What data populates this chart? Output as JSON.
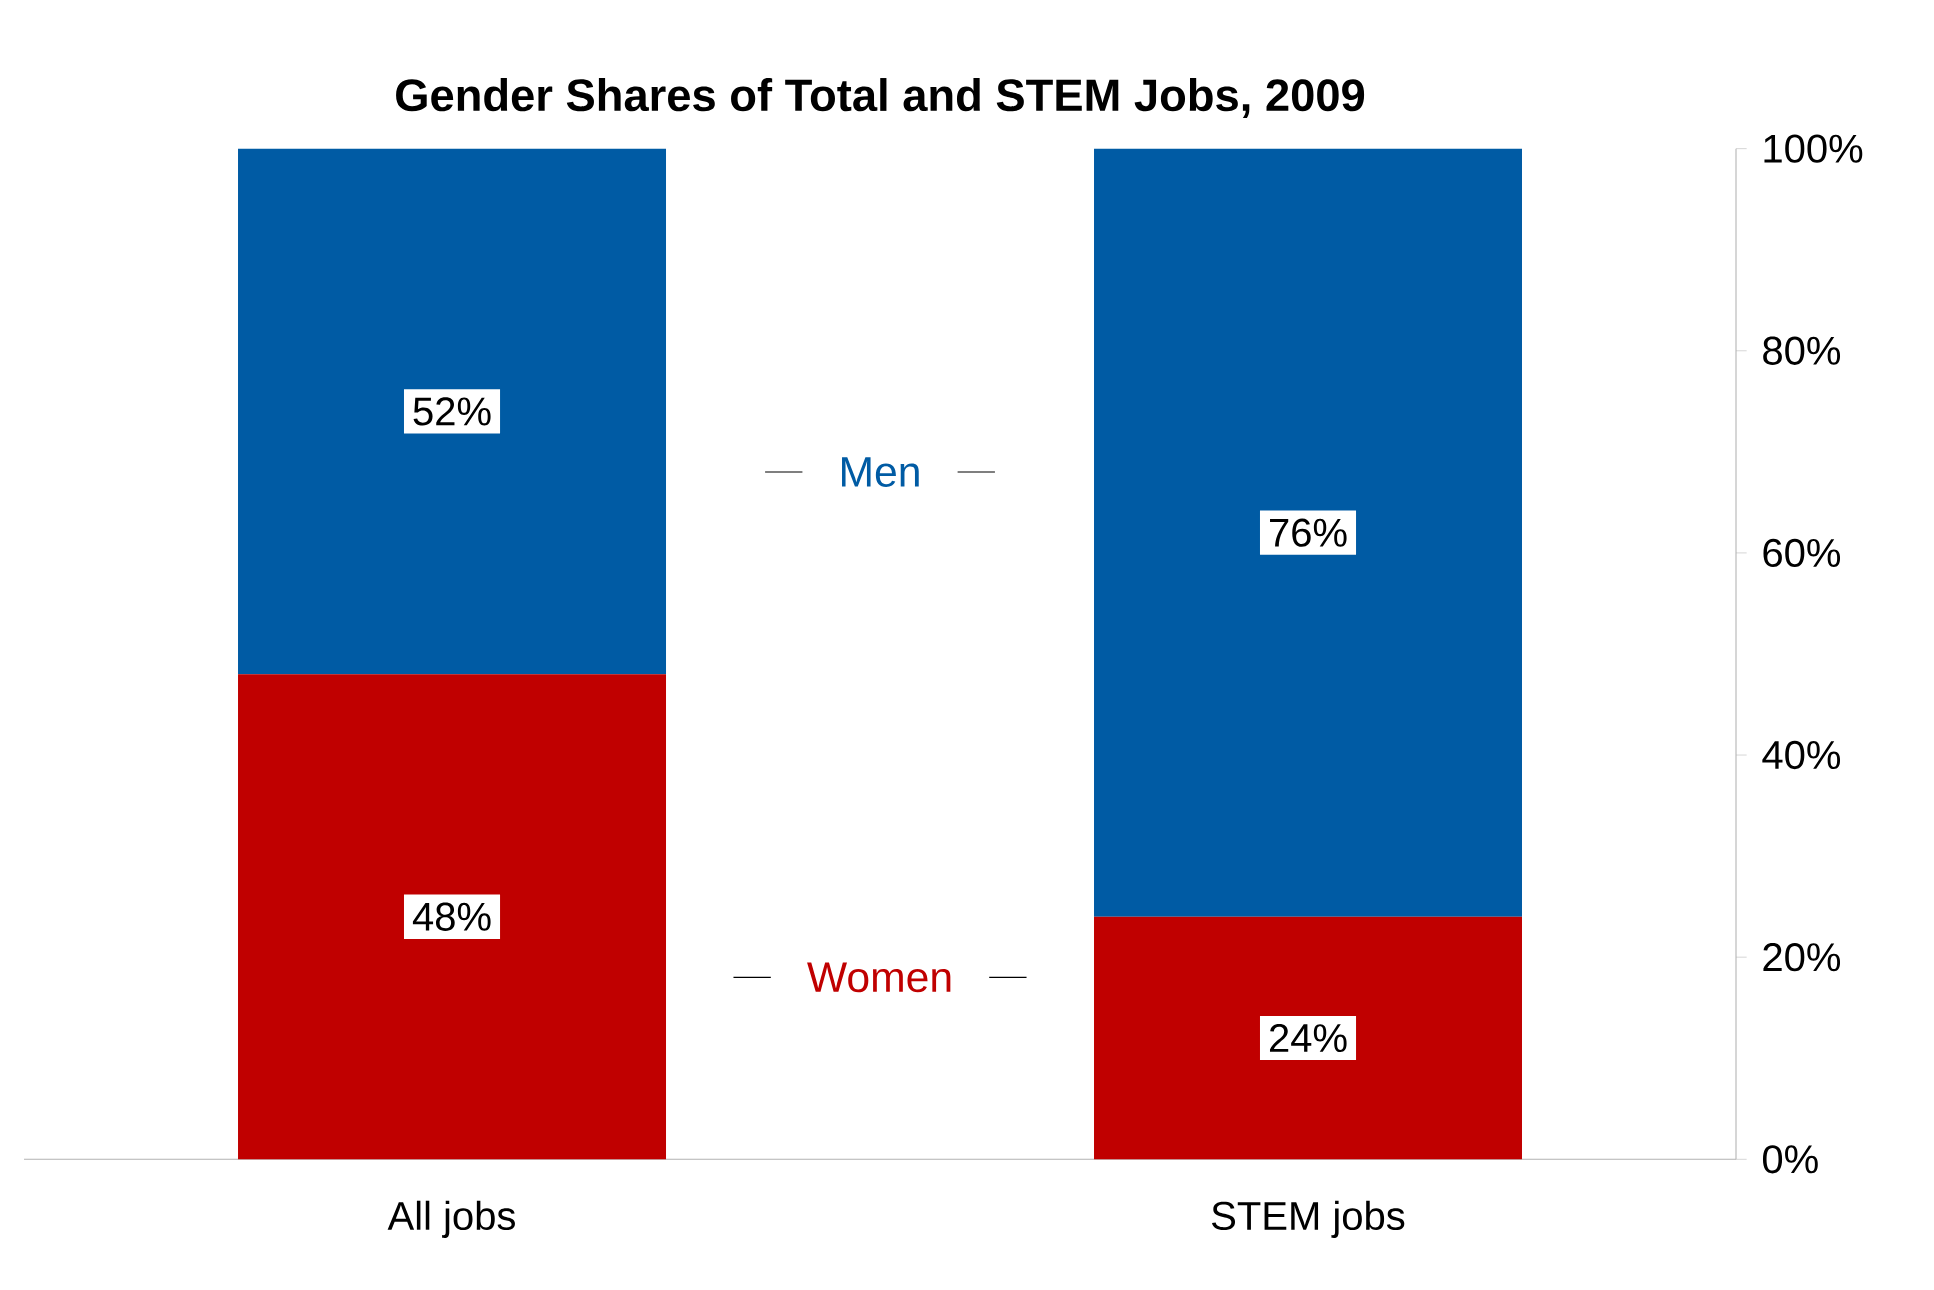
{
  "chart_data": {
    "type": "bar",
    "title": "Gender Shares of Total and STEM Jobs, 2009",
    "stacked": true,
    "categories": [
      "All jobs",
      "STEM jobs"
    ],
    "series": [
      {
        "name": "Women",
        "color": "#c00000",
        "values": [
          48,
          24
        ],
        "value_labels": [
          "48%",
          "24%"
        ]
      },
      {
        "name": "Men",
        "color": "#005ba4",
        "values": [
          52,
          76
        ],
        "value_labels": [
          "52%",
          "76%"
        ]
      }
    ],
    "ylim": [
      0,
      100
    ],
    "yticks": [
      {
        "value": 0,
        "label": "0%"
      },
      {
        "value": 20,
        "label": "20%"
      },
      {
        "value": 40,
        "label": "40%"
      },
      {
        "value": 60,
        "label": "60%"
      },
      {
        "value": 80,
        "label": "80%"
      },
      {
        "value": 100,
        "label": "100%"
      }
    ]
  }
}
